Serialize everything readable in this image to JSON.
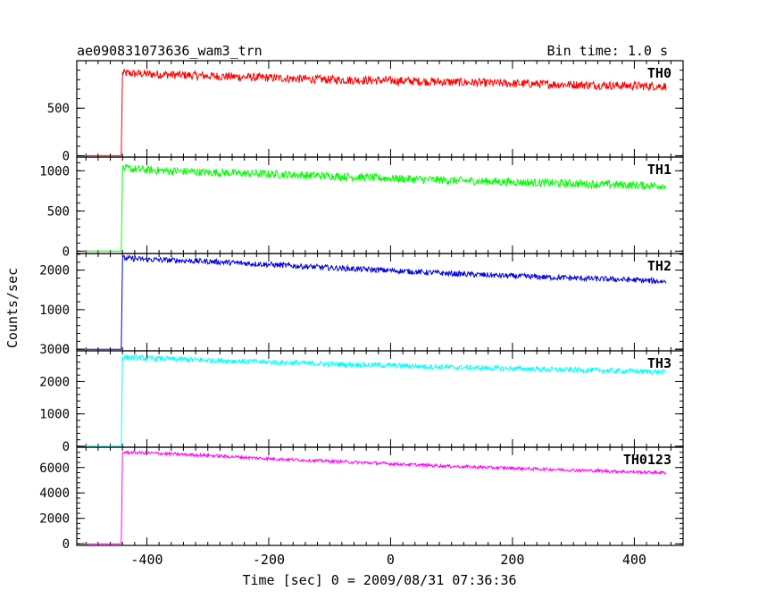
{
  "header": {
    "title": "ae090831073636_wam3_trn",
    "bin_time": "Bin time: 1.0 s"
  },
  "ylabel": "Counts/sec",
  "xlabel": "Time [sec] 0 = 2009/08/31 07:36:36",
  "chart_data": {
    "type": "line",
    "title": "ae090831073636_wam3_trn",
    "subtitle": "Bin time: 1.0 s",
    "xlabel": "Time [sec] 0 = 2009/08/31 07:36:36",
    "ylabel": "Counts/sec",
    "xlim": [
      -515,
      480
    ],
    "x_ticks": [
      -400,
      -200,
      0,
      200,
      400
    ],
    "grid": false,
    "panels": [
      {
        "name": "TH0",
        "color": "#ff0000",
        "ylim": [
          -15,
          1000
        ],
        "y_ticks": [
          0,
          500
        ],
        "background_level": 0,
        "onset_time": -440,
        "x": [
          -440,
          -400,
          -300,
          -200,
          -100,
          0,
          100,
          200,
          300,
          400,
          452
        ],
        "y": [
          870,
          860,
          840,
          820,
          800,
          790,
          775,
          760,
          748,
          735,
          730
        ],
        "noise": 45
      },
      {
        "name": "TH1",
        "color": "#00ff00",
        "ylim": [
          -30,
          1170
        ],
        "y_ticks": [
          0,
          500,
          1000
        ],
        "background_level": 0,
        "onset_time": -440,
        "x": [
          -440,
          -400,
          -300,
          -200,
          -100,
          0,
          100,
          200,
          300,
          400,
          452
        ],
        "y": [
          1030,
          1010,
          980,
          960,
          935,
          905,
          880,
          860,
          840,
          820,
          815
        ],
        "noise": 50
      },
      {
        "name": "TH2",
        "color": "#0000dd",
        "ylim": [
          -40,
          2420
        ],
        "y_ticks": [
          0,
          1000,
          2000
        ],
        "background_level": 0,
        "onset_time": -440,
        "x": [
          -440,
          -400,
          -300,
          -200,
          -100,
          0,
          100,
          200,
          300,
          400,
          452
        ],
        "y": [
          2300,
          2270,
          2220,
          2140,
          2060,
          1990,
          1910,
          1850,
          1800,
          1750,
          1710
        ],
        "noise": 70
      },
      {
        "name": "TH3",
        "color": "#00ffff",
        "ylim": [
          -30,
          2950
        ],
        "y_ticks": [
          0,
          1000,
          2000,
          3000
        ],
        "background_level": 0,
        "onset_time": -440,
        "x": [
          -440,
          -400,
          -300,
          -200,
          -100,
          0,
          100,
          200,
          300,
          400,
          452
        ],
        "y": [
          2750,
          2720,
          2660,
          2600,
          2540,
          2500,
          2440,
          2400,
          2360,
          2320,
          2290
        ],
        "noise": 80
      },
      {
        "name": "TH0123",
        "color": "#ff00ff",
        "ylim": [
          -130,
          7600
        ],
        "y_ticks": [
          0,
          2000,
          4000,
          6000
        ],
        "background_level": 0,
        "onset_time": -440,
        "x": [
          -440,
          -400,
          -300,
          -200,
          -100,
          0,
          100,
          200,
          300,
          400,
          452
        ],
        "y": [
          7200,
          7150,
          6950,
          6700,
          6500,
          6300,
          6100,
          5950,
          5800,
          5650,
          5600
        ],
        "noise": 120
      }
    ]
  }
}
